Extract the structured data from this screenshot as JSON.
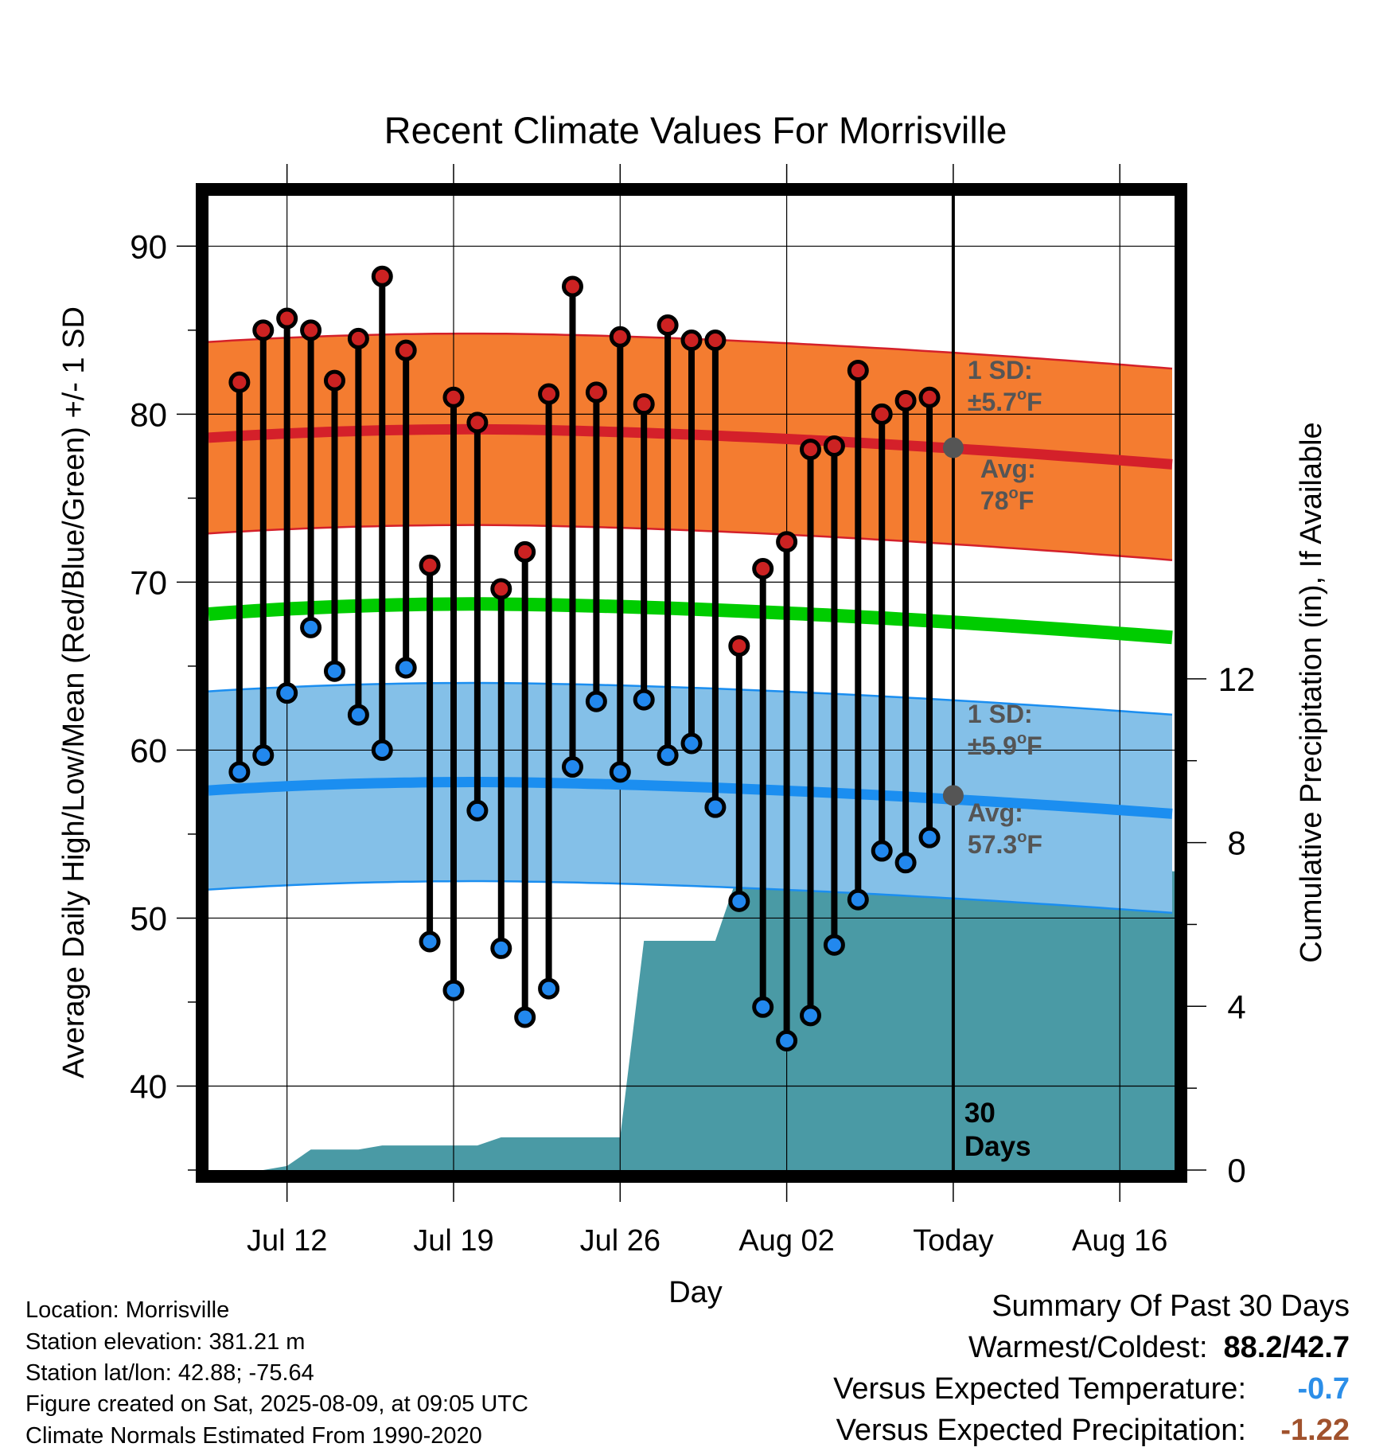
{
  "chart_data": {
    "type": "line",
    "title": "Recent Climate Values For Morrisville",
    "xlabel": "Day",
    "ylabel": "Average Daily High/Low/Mean (Red/Blue/Green) +/- 1 SD",
    "y2label": "Cumulative Precipitation (in), If Available",
    "ylim": [
      35,
      93
    ],
    "y2lim": [
      0,
      23.8
    ],
    "yticks": [
      40,
      50,
      60,
      70,
      80,
      90
    ],
    "y2ticks": [
      0,
      4,
      8,
      12
    ],
    "xticks": [
      {
        "day": 12,
        "label": "Jul 12"
      },
      {
        "day": 19,
        "label": "Jul 19"
      },
      {
        "day": 26,
        "label": "Jul 26"
      },
      {
        "day": 33,
        "label": "Aug 02"
      },
      {
        "day": 40,
        "label": "Today"
      },
      {
        "day": 47,
        "label": "Aug 16"
      }
    ],
    "xlim": [
      8.7,
      49.3
    ],
    "today_day": 40,
    "today_label_number": "30",
    "today_label_unit": "Days",
    "days": [
      10,
      11,
      12,
      13,
      14,
      15,
      16,
      17,
      18,
      19,
      20,
      21,
      22,
      23,
      24,
      25,
      26,
      27,
      28,
      29,
      30,
      31,
      32,
      33,
      34,
      35,
      36,
      37,
      38,
      39
    ],
    "highs": [
      81.9,
      85.0,
      85.7,
      85.0,
      82.0,
      84.5,
      88.2,
      83.8,
      71.0,
      81.0,
      79.5,
      69.6,
      71.8,
      81.2,
      87.6,
      81.3,
      84.6,
      80.6,
      85.3,
      84.4,
      84.4,
      66.2,
      70.8,
      72.4,
      77.9,
      78.1,
      82.6,
      80.0,
      80.8,
      81.0
    ],
    "lows": [
      58.7,
      59.7,
      63.4,
      67.3,
      64.7,
      62.1,
      60.0,
      64.9,
      48.6,
      45.7,
      56.4,
      48.2,
      44.1,
      45.8,
      59.0,
      62.9,
      58.7,
      63.0,
      59.7,
      60.4,
      56.6,
      51.0,
      44.7,
      42.7,
      44.2,
      48.4,
      51.1,
      54.0,
      53.3,
      54.8
    ],
    "avg_high": [
      78.6,
      78.7,
      78.8,
      78.9,
      79.0,
      79.0,
      79.1,
      79.1,
      79.1,
      79.1,
      79.1,
      79.1,
      79.0,
      79.0,
      79.0,
      78.9,
      78.9,
      78.8,
      78.8,
      78.7,
      78.6,
      78.5,
      78.4,
      78.3,
      78.2,
      78.1,
      78.0,
      77.9,
      77.8,
      77.7,
      77.6,
      77.5,
      77.4,
      77.3,
      77.2,
      77.1
    ],
    "avg_high_days": [
      8.7,
      10,
      11,
      12,
      13,
      14,
      15,
      16,
      17,
      18,
      19,
      20,
      21,
      22,
      23,
      24,
      25,
      26,
      27,
      28,
      29,
      30,
      31,
      32,
      33,
      34,
      35,
      36,
      37,
      38,
      39,
      40,
      41,
      42,
      43,
      49.3
    ],
    "avg_low_start": 57.6,
    "avg_low_peak": 58.1,
    "avg_low_end": 56.2,
    "avg_high_start": 78.6,
    "avg_high_peak": 79.1,
    "avg_high_end": 77.0,
    "mean_start": 68.1,
    "mean_peak": 68.7,
    "mean_end": 66.7,
    "high_sd": 5.7,
    "low_sd": 5.9,
    "precip_days": [
      8.7,
      11,
      12,
      13,
      15,
      16,
      19,
      20,
      21,
      22,
      25,
      26,
      27,
      29,
      30,
      31,
      40,
      49.3
    ],
    "precip_cum": [
      0,
      0,
      0.1,
      0.5,
      0.5,
      0.6,
      0.6,
      0.6,
      0.8,
      0.8,
      0.8,
      0.8,
      5.6,
      5.6,
      5.6,
      7.3,
      7.3,
      7.3
    ],
    "annotations": {
      "high_sd_line1": "1 SD:",
      "high_sd_line2": "±5.7",
      "high_avg_line1": "Avg:",
      "high_avg_line2": "78",
      "low_sd_line1": "1 SD:",
      "low_sd_line2": "±5.9",
      "low_avg_line1": "Avg:",
      "low_avg_line2": "57.3",
      "degree_o": "o",
      "unit_f": "F"
    },
    "today_avg_high": 78.0,
    "today_avg_low": 57.3,
    "colors": {
      "high_band": "#f47c30",
      "high_line": "#d4202a",
      "mean_line": "#00cc00",
      "low_band": "#84c0e8",
      "low_line": "#1b8ef0",
      "precip": "#4a9aa5",
      "high_dot": "#cc2222",
      "low_dot": "#2288ee",
      "annotation": "#555555"
    }
  },
  "info": {
    "location": "Location: Morrisville",
    "elevation": "Station elevation: 381.21 m",
    "latlon": "Station lat/lon: 42.88; -75.64",
    "created": "Figure created on Sat, 2025-08-09, at 09:05 UTC",
    "normals": "Climate Normals Estimated From 1990-2020"
  },
  "summary": {
    "title": "Summary Of Past 30 Days",
    "warm_cold_label": "Warmest/Coldest:",
    "warm_cold_value": "88.2/42.7",
    "temp_label": "Versus Expected Temperature:",
    "temp_value": "-0.7",
    "temp_color": "#2b8ee8",
    "precip_label": "Versus Expected Precipitation:",
    "precip_value": "-1.22",
    "precip_color": "#a0522d"
  }
}
